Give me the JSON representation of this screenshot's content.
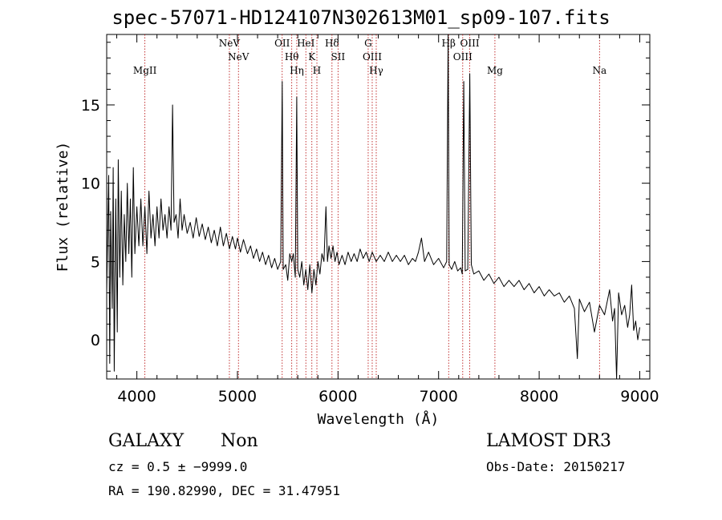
{
  "chart_data": {
    "type": "line",
    "title": "spec-57071-HD124107N302613M01_sp09-107.fits",
    "xlabel": "Wavelength (Å)",
    "ylabel": "Flux (relative)",
    "xlim": [
      3700,
      9100
    ],
    "ylim": [
      -2.5,
      19.5
    ],
    "xticks": [
      4000,
      5000,
      6000,
      7000,
      8000,
      9000
    ],
    "yticks": [
      0,
      5,
      10,
      15
    ],
    "lines": [
      {
        "name": "MgII",
        "x": 4080
      },
      {
        "name": "NeV",
        "x": 4920
      },
      {
        "name": "NeV",
        "x": 5010
      },
      {
        "name": "OII",
        "x": 5445
      },
      {
        "name": "Hθ",
        "x": 5540
      },
      {
        "name": "Hη",
        "x": 5590
      },
      {
        "name": "HeI",
        "x": 5680
      },
      {
        "name": "K",
        "x": 5740
      },
      {
        "name": "H",
        "x": 5790
      },
      {
        "name": "Hδ",
        "x": 5940
      },
      {
        "name": "SII",
        "x": 6000
      },
      {
        "name": "G",
        "x": 6300
      },
      {
        "name": "OIII",
        "x": 6340
      },
      {
        "name": "Hγ",
        "x": 6380
      },
      {
        "name": "Hβ",
        "x": 7100
      },
      {
        "name": "OIII",
        "x": 7240
      },
      {
        "name": "OIII",
        "x": 7310
      },
      {
        "name": "Mg",
        "x": 7560
      },
      {
        "name": "Na",
        "x": 8600
      }
    ],
    "series": [
      {
        "name": "flux",
        "points": [
          [
            3700,
            3.0
          ],
          [
            3720,
            10.5
          ],
          [
            3730,
            -1.5
          ],
          [
            3740,
            8.2
          ],
          [
            3755,
            2.0
          ],
          [
            3765,
            11.0
          ],
          [
            3775,
            -2.0
          ],
          [
            3790,
            9.0
          ],
          [
            3805,
            0.5
          ],
          [
            3815,
            11.5
          ],
          [
            3830,
            4.0
          ],
          [
            3845,
            9.5
          ],
          [
            3860,
            3.5
          ],
          [
            3875,
            8.0
          ],
          [
            3890,
            5.0
          ],
          [
            3905,
            10.0
          ],
          [
            3920,
            5.5
          ],
          [
            3935,
            9.0
          ],
          [
            3950,
            4.0
          ],
          [
            3965,
            11.0
          ],
          [
            3980,
            5.5
          ],
          [
            4000,
            8.5
          ],
          [
            4020,
            6.0
          ],
          [
            4040,
            9.0
          ],
          [
            4060,
            6.0
          ],
          [
            4080,
            8.5
          ],
          [
            4100,
            5.5
          ],
          [
            4120,
            9.5
          ],
          [
            4140,
            6.5
          ],
          [
            4160,
            8.0
          ],
          [
            4180,
            6.0
          ],
          [
            4200,
            8.5
          ],
          [
            4220,
            6.5
          ],
          [
            4240,
            9.0
          ],
          [
            4260,
            7.0
          ],
          [
            4280,
            8.0
          ],
          [
            4300,
            6.5
          ],
          [
            4320,
            8.5
          ],
          [
            4340,
            7.0
          ],
          [
            4355,
            15.0
          ],
          [
            4370,
            7.5
          ],
          [
            4390,
            8.0
          ],
          [
            4410,
            6.5
          ],
          [
            4430,
            9.0
          ],
          [
            4450,
            7.0
          ],
          [
            4470,
            8.0
          ],
          [
            4500,
            6.8
          ],
          [
            4530,
            7.5
          ],
          [
            4560,
            6.5
          ],
          [
            4590,
            7.8
          ],
          [
            4620,
            6.6
          ],
          [
            4650,
            7.4
          ],
          [
            4680,
            6.4
          ],
          [
            4710,
            7.2
          ],
          [
            4740,
            6.2
          ],
          [
            4770,
            7.0
          ],
          [
            4800,
            6.0
          ],
          [
            4830,
            7.2
          ],
          [
            4860,
            6.0
          ],
          [
            4890,
            6.8
          ],
          [
            4920,
            5.8
          ],
          [
            4950,
            6.6
          ],
          [
            4980,
            5.8
          ],
          [
            5000,
            6.5
          ],
          [
            5030,
            5.6
          ],
          [
            5060,
            6.4
          ],
          [
            5100,
            5.5
          ],
          [
            5130,
            6.0
          ],
          [
            5160,
            5.2
          ],
          [
            5190,
            5.8
          ],
          [
            5220,
            5.0
          ],
          [
            5250,
            5.6
          ],
          [
            5280,
            4.8
          ],
          [
            5310,
            5.4
          ],
          [
            5340,
            4.6
          ],
          [
            5370,
            5.2
          ],
          [
            5400,
            4.5
          ],
          [
            5430,
            5.0
          ],
          [
            5445,
            16.5
          ],
          [
            5455,
            4.5
          ],
          [
            5480,
            4.8
          ],
          [
            5500,
            3.8
          ],
          [
            5520,
            5.5
          ],
          [
            5540,
            5.0
          ],
          [
            5555,
            5.5
          ],
          [
            5575,
            4.0
          ],
          [
            5590,
            15.5
          ],
          [
            5600,
            4.5
          ],
          [
            5620,
            4.0
          ],
          [
            5640,
            5.0
          ],
          [
            5660,
            3.5
          ],
          [
            5680,
            4.5
          ],
          [
            5700,
            3.2
          ],
          [
            5720,
            4.8
          ],
          [
            5740,
            3.0
          ],
          [
            5760,
            4.5
          ],
          [
            5780,
            3.5
          ],
          [
            5800,
            5.0
          ],
          [
            5820,
            4.2
          ],
          [
            5840,
            5.5
          ],
          [
            5860,
            5.0
          ],
          [
            5880,
            8.5
          ],
          [
            5895,
            5.0
          ],
          [
            5910,
            6.0
          ],
          [
            5930,
            5.2
          ],
          [
            5950,
            6.0
          ],
          [
            5970,
            5.0
          ],
          [
            5990,
            5.6
          ],
          [
            6010,
            4.8
          ],
          [
            6040,
            5.4
          ],
          [
            6070,
            4.8
          ],
          [
            6100,
            5.6
          ],
          [
            6130,
            5.0
          ],
          [
            6160,
            5.5
          ],
          [
            6190,
            5.0
          ],
          [
            6220,
            5.8
          ],
          [
            6250,
            5.2
          ],
          [
            6280,
            5.6
          ],
          [
            6310,
            5.0
          ],
          [
            6340,
            5.6
          ],
          [
            6380,
            5.0
          ],
          [
            6420,
            5.4
          ],
          [
            6460,
            5.0
          ],
          [
            6500,
            5.6
          ],
          [
            6540,
            5.0
          ],
          [
            6580,
            5.4
          ],
          [
            6620,
            5.0
          ],
          [
            6660,
            5.4
          ],
          [
            6700,
            4.8
          ],
          [
            6740,
            5.2
          ],
          [
            6770,
            5.0
          ],
          [
            6800,
            5.6
          ],
          [
            6830,
            6.5
          ],
          [
            6860,
            5.0
          ],
          [
            6900,
            5.6
          ],
          [
            6950,
            4.8
          ],
          [
            7000,
            5.2
          ],
          [
            7050,
            4.6
          ],
          [
            7080,
            5.0
          ],
          [
            7095,
            19.5
          ],
          [
            7105,
            4.8
          ],
          [
            7130,
            4.5
          ],
          [
            7160,
            5.0
          ],
          [
            7190,
            4.4
          ],
          [
            7220,
            4.6
          ],
          [
            7235,
            4.2
          ],
          [
            7250,
            16.5
          ],
          [
            7265,
            4.4
          ],
          [
            7290,
            4.5
          ],
          [
            7310,
            17.0
          ],
          [
            7325,
            4.8
          ],
          [
            7350,
            4.2
          ],
          [
            7400,
            4.4
          ],
          [
            7450,
            3.8
          ],
          [
            7500,
            4.2
          ],
          [
            7550,
            3.6
          ],
          [
            7600,
            4.0
          ],
          [
            7650,
            3.4
          ],
          [
            7700,
            3.8
          ],
          [
            7750,
            3.4
          ],
          [
            7800,
            3.8
          ],
          [
            7850,
            3.2
          ],
          [
            7900,
            3.6
          ],
          [
            7950,
            3.0
          ],
          [
            8000,
            3.4
          ],
          [
            8050,
            2.8
          ],
          [
            8100,
            3.2
          ],
          [
            8150,
            2.8
          ],
          [
            8200,
            3.0
          ],
          [
            8250,
            2.4
          ],
          [
            8300,
            2.8
          ],
          [
            8350,
            2.0
          ],
          [
            8380,
            -1.2
          ],
          [
            8400,
            2.6
          ],
          [
            8450,
            1.8
          ],
          [
            8500,
            2.4
          ],
          [
            8550,
            0.5
          ],
          [
            8600,
            2.2
          ],
          [
            8650,
            1.6
          ],
          [
            8700,
            3.2
          ],
          [
            8730,
            1.2
          ],
          [
            8750,
            2.0
          ],
          [
            8770,
            -3.0
          ],
          [
            8790,
            3.0
          ],
          [
            8820,
            1.6
          ],
          [
            8850,
            2.2
          ],
          [
            8880,
            0.8
          ],
          [
            8900,
            1.6
          ],
          [
            8920,
            3.5
          ],
          [
            8940,
            0.6
          ],
          [
            8960,
            1.2
          ],
          [
            8980,
            0.0
          ],
          [
            9000,
            0.8
          ]
        ]
      }
    ]
  },
  "info": {
    "class": "GALAXY",
    "subclass": "Non",
    "survey": "LAMOST DR3",
    "cz": "cz = 0.5 ± −9999.0",
    "obs_date": "Obs-Date: 20150217",
    "radec": "RA = 190.82990, DEC =  31.47951"
  },
  "colors": {
    "spectrum": "#000000",
    "lines": "#b30000",
    "axes": "#000000"
  }
}
